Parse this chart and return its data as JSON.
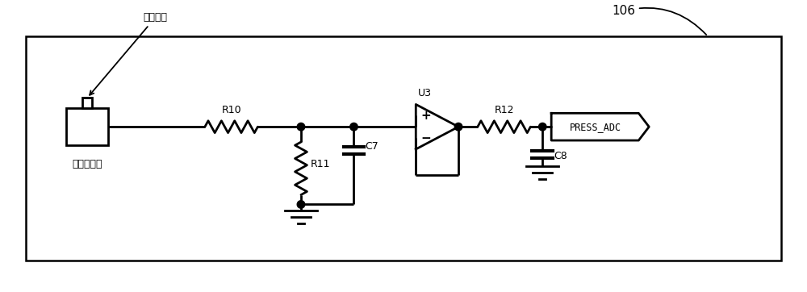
{
  "bg_color": "#ffffff",
  "line_color": "#000000",
  "lw": 2.0,
  "box_label_106": "106",
  "label_sensor": "压力传感器",
  "label_airpath": "气路接口",
  "label_R10": "R10",
  "label_R11": "R11",
  "label_C7": "C7",
  "label_U3": "U3",
  "label_R12": "R12",
  "label_C8": "C8",
  "label_PRESS_ADC": "PRESS_ADC"
}
